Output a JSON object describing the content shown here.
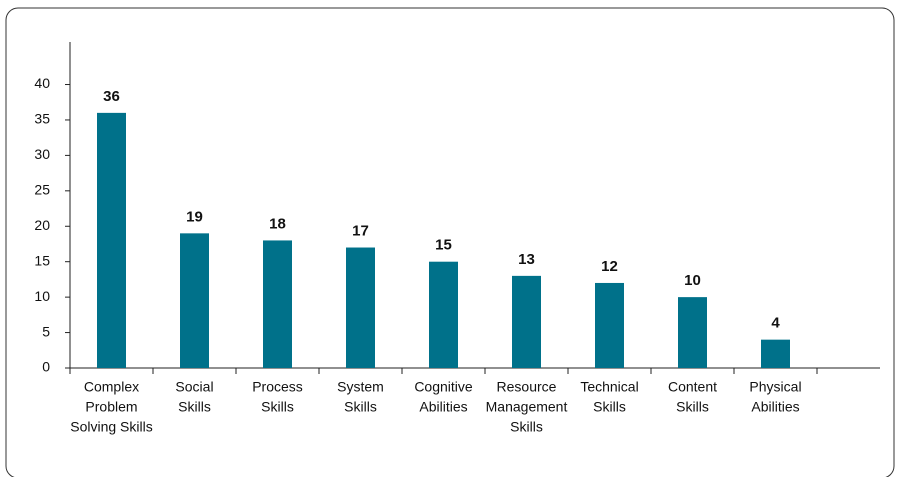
{
  "chart_data": {
    "type": "bar",
    "categories": [
      [
        "Complex",
        "Problem",
        "Solving Skills"
      ],
      [
        "Social",
        "Skills"
      ],
      [
        "Process",
        "Skills"
      ],
      [
        "System",
        "Skills"
      ],
      [
        "Cognitive",
        "Abilities"
      ],
      [
        "Resource",
        "Management",
        "Skills"
      ],
      [
        "Technical",
        "Skills"
      ],
      [
        "Content",
        "Skills"
      ],
      [
        "Physical",
        "Abilities"
      ]
    ],
    "values": [
      36,
      19,
      18,
      17,
      15,
      13,
      12,
      10,
      4
    ],
    "color": "#00718a",
    "ylim": [
      0,
      46
    ],
    "yticks": [
      0,
      5,
      10,
      15,
      20,
      25,
      30,
      35,
      40
    ]
  }
}
